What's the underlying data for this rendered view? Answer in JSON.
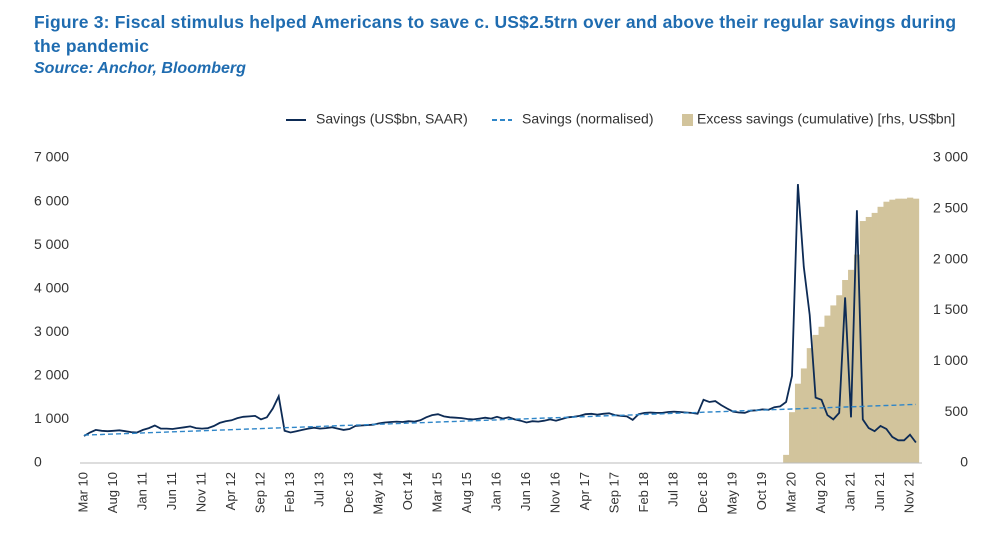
{
  "chart_data": {
    "type": "combo",
    "title": "Figure 3: Fiscal stimulus helped Americans to save c. US$2.5trn over and above their regular savings during the pandemic",
    "subtitle": "Source: Anchor, Bloomberg",
    "categories": [
      "Mar 10",
      null,
      null,
      null,
      null,
      "Aug 10",
      null,
      null,
      null,
      null,
      "Jan 11",
      null,
      null,
      null,
      null,
      "Jun 11",
      null,
      null,
      null,
      null,
      "Nov 11",
      null,
      null,
      null,
      null,
      "Apr 12",
      null,
      null,
      null,
      null,
      "Sep 12",
      null,
      null,
      null,
      null,
      "Feb 13",
      null,
      null,
      null,
      null,
      "Jul 13",
      null,
      null,
      null,
      null,
      "Dec 13",
      null,
      null,
      null,
      null,
      "May 14",
      null,
      null,
      null,
      null,
      "Oct 14",
      null,
      null,
      null,
      null,
      "Mar 15",
      null,
      null,
      null,
      null,
      "Aug 15",
      null,
      null,
      null,
      null,
      "Jan 16",
      null,
      null,
      null,
      null,
      "Jun 16",
      null,
      null,
      null,
      null,
      "Nov 16",
      null,
      null,
      null,
      null,
      "Apr 17",
      null,
      null,
      null,
      null,
      "Sep 17",
      null,
      null,
      null,
      null,
      "Feb 18",
      null,
      null,
      null,
      null,
      "Jul 18",
      null,
      null,
      null,
      null,
      "Dec 18",
      null,
      null,
      null,
      null,
      "May 19",
      null,
      null,
      null,
      null,
      "Oct 19",
      null,
      null,
      null,
      null,
      "Mar 20",
      null,
      null,
      null,
      null,
      "Aug 20",
      null,
      null,
      null,
      null,
      "Jan 21",
      null,
      null,
      null,
      null,
      "Jun 21",
      null,
      null,
      null,
      null,
      "Nov 21",
      null
    ],
    "series": [
      {
        "name": "Excess savings (cumulative) [rhs, US$bn]",
        "type": "bar",
        "axis": "y2",
        "color": "#d2c49c",
        "values": [
          null,
          null,
          null,
          null,
          null,
          null,
          null,
          null,
          null,
          null,
          null,
          null,
          null,
          null,
          null,
          null,
          null,
          null,
          null,
          null,
          null,
          null,
          null,
          null,
          null,
          null,
          null,
          null,
          null,
          null,
          null,
          null,
          null,
          null,
          null,
          null,
          null,
          null,
          null,
          null,
          null,
          null,
          null,
          null,
          null,
          null,
          null,
          null,
          null,
          null,
          null,
          null,
          null,
          null,
          null,
          null,
          null,
          null,
          null,
          null,
          null,
          null,
          null,
          null,
          null,
          null,
          null,
          null,
          null,
          null,
          null,
          null,
          null,
          null,
          null,
          null,
          null,
          null,
          null,
          null,
          null,
          null,
          null,
          null,
          null,
          null,
          null,
          null,
          null,
          null,
          null,
          null,
          null,
          null,
          null,
          null,
          null,
          null,
          null,
          null,
          null,
          null,
          null,
          null,
          null,
          null,
          null,
          null,
          null,
          null,
          null,
          null,
          null,
          null,
          null,
          null,
          null,
          null,
          null,
          80,
          500,
          780,
          930,
          1130,
          1260,
          1340,
          1450,
          1550,
          1650,
          1800,
          1900,
          2050,
          2380,
          2420,
          2460,
          2520,
          2570,
          2590,
          2600,
          2600,
          2610,
          2600
        ]
      },
      {
        "name": "Savings (US$bn, SAAR)",
        "type": "line",
        "color": "#0d2b55",
        "values": [
          620,
          700,
          760,
          740,
          730,
          740,
          750,
          730,
          710,
          700,
          760,
          800,
          860,
          790,
          790,
          780,
          800,
          820,
          840,
          800,
          790,
          800,
          850,
          920,
          960,
          980,
          1030,
          1060,
          1070,
          1080,
          1000,
          1050,
          1250,
          1530,
          740,
          700,
          730,
          760,
          790,
          810,
          790,
          800,
          820,
          790,
          760,
          780,
          850,
          860,
          870,
          880,
          910,
          930,
          940,
          950,
          940,
          960,
          950,
          980,
          1050,
          1100,
          1120,
          1070,
          1050,
          1040,
          1030,
          1010,
          1000,
          1020,
          1040,
          1020,
          1060,
          1020,
          1050,
          1000,
          970,
          930,
          960,
          950,
          970,
          1000,
          970,
          1010,
          1050,
          1060,
          1080,
          1120,
          1130,
          1110,
          1130,
          1140,
          1100,
          1080,
          1070,
          990,
          1120,
          1150,
          1160,
          1150,
          1150,
          1170,
          1180,
          1170,
          1160,
          1150,
          1130,
          1450,
          1400,
          1420,
          1330,
          1250,
          1180,
          1160,
          1150,
          1200,
          1210,
          1230,
          1220,
          1280,
          1300,
          1400,
          2000,
          6400,
          4500,
          3400,
          1500,
          1450,
          1100,
          1000,
          1150,
          3800,
          1050,
          5800,
          1000,
          800,
          730,
          850,
          780,
          600,
          520,
          520,
          650,
          470
        ]
      },
      {
        "name": "Savings (normalised)",
        "type": "line",
        "dashed": true,
        "color": "#2f86c8",
        "values": [
          640,
          645,
          650,
          655,
          660,
          665,
          670,
          675,
          680,
          685,
          690,
          695,
          700,
          705,
          710,
          715,
          720,
          725,
          730,
          735,
          740,
          745,
          750,
          755,
          760,
          765,
          770,
          775,
          780,
          785,
          790,
          795,
          800,
          805,
          810,
          815,
          820,
          825,
          830,
          835,
          840,
          845,
          850,
          855,
          860,
          865,
          870,
          875,
          880,
          885,
          890,
          895,
          900,
          905,
          910,
          915,
          920,
          925,
          930,
          935,
          940,
          945,
          950,
          955,
          960,
          965,
          970,
          975,
          980,
          985,
          990,
          995,
          1000,
          1005,
          1010,
          1015,
          1020,
          1025,
          1030,
          1035,
          1040,
          1045,
          1050,
          1055,
          1060,
          1065,
          1070,
          1075,
          1080,
          1085,
          1090,
          1095,
          1100,
          1105,
          1110,
          1115,
          1120,
          1125,
          1130,
          1135,
          1140,
          1145,
          1150,
          1155,
          1160,
          1165,
          1170,
          1175,
          1180,
          1185,
          1190,
          1195,
          1200,
          1205,
          1210,
          1215,
          1220,
          1225,
          1230,
          1235,
          1240,
          1245,
          1250,
          1255,
          1260,
          1265,
          1270,
          1275,
          1280,
          1285,
          1290,
          1295,
          1300,
          1305,
          1310,
          1315,
          1320,
          1325,
          1330,
          1335,
          1340,
          1345
        ]
      }
    ],
    "ylim": [
      0,
      7000
    ],
    "yticks": [
      0,
      {
        "value": 1000,
        "label": "1 000"
      },
      {
        "value": 2000,
        "label": "2 000"
      },
      {
        "value": 3000,
        "label": "3 000"
      },
      {
        "value": 4000,
        "label": "4 000"
      },
      {
        "value": 5000,
        "label": "5 000"
      },
      {
        "value": 6000,
        "label": "6 000"
      },
      {
        "value": 7000,
        "label": "7 000"
      }
    ],
    "y2lim": [
      0,
      3000
    ],
    "y2ticks": [
      0,
      500,
      {
        "value": 1000,
        "label": "1 000"
      },
      {
        "value": 1500,
        "label": "1 500"
      },
      {
        "value": 2000,
        "label": "2 000"
      },
      {
        "value": 2500,
        "label": "2 500"
      },
      {
        "value": 3000,
        "label": "3 000"
      }
    ],
    "legend": "top-right",
    "grid": false
  }
}
